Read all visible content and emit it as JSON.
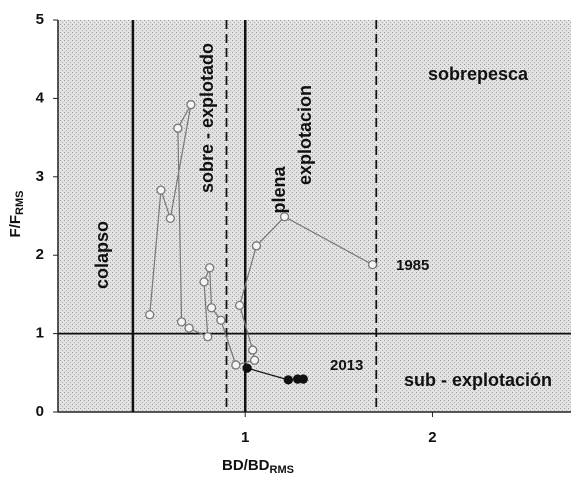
{
  "chart_data": {
    "type": "scatter",
    "x_label": {
      "main": "BD/BD",
      "sub": "RMS"
    },
    "y_label": {
      "main": "F/F",
      "sub": "RMS"
    },
    "xlim": [
      0,
      2.74
    ],
    "ylim": [
      0,
      5
    ],
    "xticks": [
      1,
      2
    ],
    "yticks": [
      0,
      1,
      2,
      3,
      4,
      5
    ],
    "vlines": [
      {
        "value": 0.4,
        "style": "solid"
      },
      {
        "value": 0.9,
        "style": "dashed"
      },
      {
        "value": 1.0,
        "style": "solid"
      },
      {
        "value": 1.7,
        "style": "dashed"
      }
    ],
    "hlines": [
      {
        "value": 1.0,
        "style": "solid"
      }
    ],
    "annotations": [
      "colapso",
      "sobre - explotado",
      "plena",
      "explotacion",
      "sobrepesca",
      "sub - explotación",
      "1985",
      "2013"
    ],
    "series": [
      {
        "color": "#777777",
        "marker": "open",
        "x": [
          1.68,
          1.21,
          1.06,
          0.97,
          1.04,
          1.05,
          0.95,
          0.87,
          0.82,
          0.81,
          0.78,
          0.8,
          0.7,
          0.66,
          0.64,
          0.71,
          0.6,
          0.55,
          0.49
        ],
        "values": [
          1.88,
          2.49,
          2.12,
          1.36,
          0.79,
          0.66,
          0.6,
          1.17,
          1.33,
          1.84,
          1.66,
          0.96,
          1.07,
          1.15,
          3.62,
          3.92,
          2.47,
          2.83,
          1.24
        ]
      },
      {
        "color": "#111111",
        "marker": "filled",
        "x": [
          1.01,
          1.23,
          1.28,
          1.31
        ],
        "values": [
          0.56,
          0.41,
          0.42,
          0.42
        ]
      }
    ]
  }
}
